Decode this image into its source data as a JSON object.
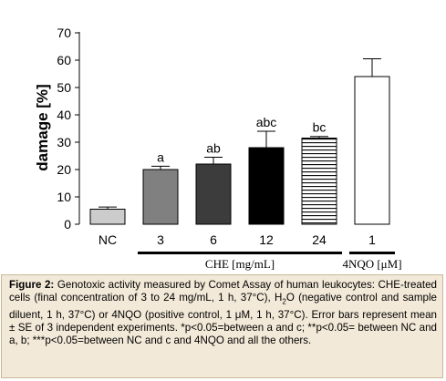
{
  "chart_data": {
    "type": "bar",
    "categories": [
      "NC",
      "3",
      "6",
      "12",
      "24",
      "1"
    ],
    "values": [
      5.5,
      20,
      22,
      28,
      31.5,
      54
    ],
    "errors": [
      0.8,
      1.2,
      2.5,
      6,
      0.6,
      6.5
    ],
    "significance": [
      "",
      "a",
      "ab",
      "abc",
      "bc",
      ""
    ],
    "bar_fills": [
      "#cccccc",
      "#808080",
      "#3c3c3c",
      "#000000",
      "hlines",
      "#ffffff"
    ],
    "ylabel": "damage [%]",
    "yticks": [
      0,
      10,
      20,
      30,
      40,
      50,
      60,
      70
    ],
    "ylim": [
      0,
      70
    ],
    "groups": [
      {
        "label": "CHE [mg/mL]",
        "from": 1,
        "to": 4
      },
      {
        "label": "4NQO [μM]",
        "from": 5,
        "to": 5
      }
    ],
    "grid": false
  },
  "caption": {
    "figure_label": "Figure 2:",
    "text_part1": " Genotoxic activity measured by Comet Assay of human leukocytes: CHE-treated cells (final concentration of 3 to 24 mg/mL, 1 h, 37°C), H",
    "subscript": "2",
    "text_part2": "O (negative control and sample diluent, 1 h, 37°C) or 4NQO (positive control, 1 μM, 1 h, 37°C). Error bars represent mean ± SE of 3 independent experiments. *p<0.05=between a and c; **p<0.05= between NC and a, b; ***p<0.05=between NC and c and 4NQO and all the others."
  }
}
